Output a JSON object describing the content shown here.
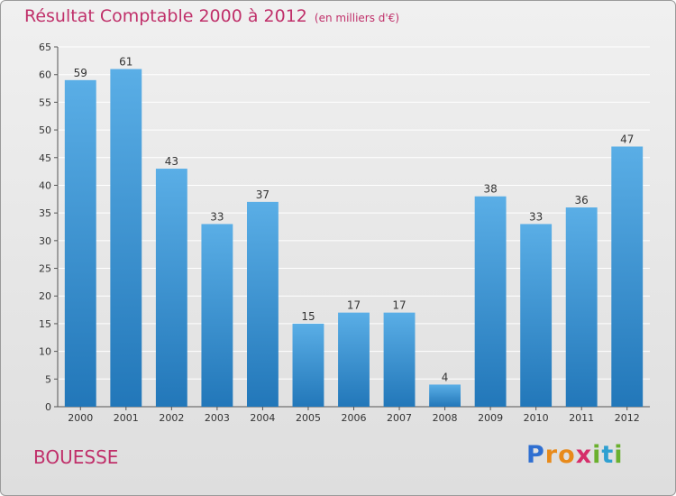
{
  "title": "Résultat Comptable 2000 à 2012",
  "subtitle": "(en milliers d'€)",
  "place": "BOUESSE",
  "logo": {
    "letters": [
      "P",
      "r",
      "o",
      "x",
      "i",
      "t",
      "i"
    ],
    "colors": [
      "#2f6fd1",
      "#e88a1a",
      "#e88a1a",
      "#d62e6a",
      "#6ab02e",
      "#2fa0d1",
      "#6ab02e"
    ]
  },
  "colors": {
    "bar_light": "#5aaee6",
    "bar_dark": "#2277b9",
    "title": "#c0306a",
    "grid": "#ffffff"
  },
  "chart_data": {
    "type": "bar",
    "categories": [
      "2000",
      "2001",
      "2002",
      "2003",
      "2004",
      "2005",
      "2006",
      "2007",
      "2008",
      "2009",
      "2010",
      "2011",
      "2012"
    ],
    "values": [
      59,
      61,
      43,
      33,
      37,
      15,
      17,
      17,
      4,
      38,
      33,
      36,
      47
    ],
    "ylim": [
      0,
      65
    ],
    "yticks": [
      0,
      5,
      10,
      15,
      20,
      25,
      30,
      35,
      40,
      45,
      50,
      55,
      60,
      65
    ],
    "grid": true
  }
}
